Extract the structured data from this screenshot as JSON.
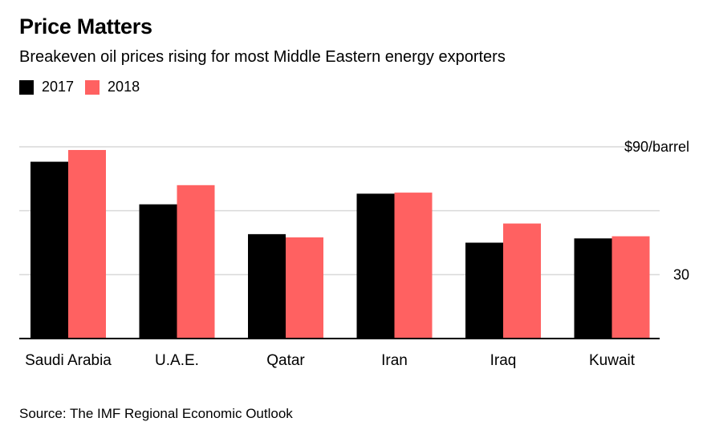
{
  "title": "Price Matters",
  "subtitle": "Breakeven oil prices rising for most Middle Eastern energy exporters",
  "source": "Source: The IMF Regional Economic Outlook",
  "legend": [
    {
      "label": "2017",
      "color": "#000000"
    },
    {
      "label": "2018",
      "color": "#ff6161"
    }
  ],
  "chart_data": {
    "type": "bar",
    "categories": [
      "Saudi Arabia",
      "U.A.E.",
      "Qatar",
      "Iran",
      "Iraq",
      "Kuwait"
    ],
    "series": [
      {
        "name": "2017",
        "color": "#000000",
        "values": [
          83,
          63,
          49,
          68,
          45,
          47
        ]
      },
      {
        "name": "2018",
        "color": "#ff6161",
        "values": [
          88.5,
          72,
          47.5,
          68.5,
          54,
          48
        ]
      }
    ],
    "ylim": [
      0,
      90
    ],
    "yticks": [
      0,
      30,
      60,
      90
    ],
    "ytick_labels": [
      "",
      "30",
      "",
      "$90/barrel"
    ],
    "grid": true,
    "legend_position": "top-left",
    "xlabel": "",
    "ylabel": ""
  }
}
